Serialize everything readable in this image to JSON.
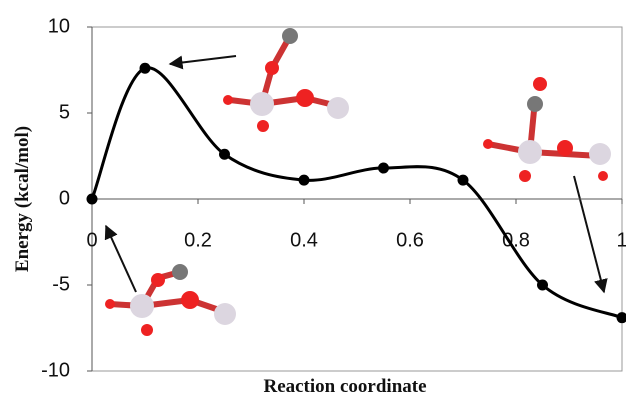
{
  "chart_data": {
    "type": "line",
    "xlabel": "Reaction coordinate",
    "ylabel": "Energy (kcal/mol)",
    "x": [
      0,
      0.1,
      0.25,
      0.4,
      0.55,
      0.7,
      0.85,
      1
    ],
    "series": [
      {
        "color": "#000000",
        "values": [
          0,
          7.6,
          2.6,
          1.1,
          1.8,
          1.1,
          -5.0,
          -6.9
        ]
      }
    ],
    "xlim": [
      0,
      1
    ],
    "xticks": [
      0,
      0.2,
      0.4,
      0.6,
      0.8,
      1
    ],
    "ylim": [
      -10,
      10
    ],
    "yticks": [
      -10,
      -5,
      0,
      5,
      10
    ],
    "smooth": true
  }
}
